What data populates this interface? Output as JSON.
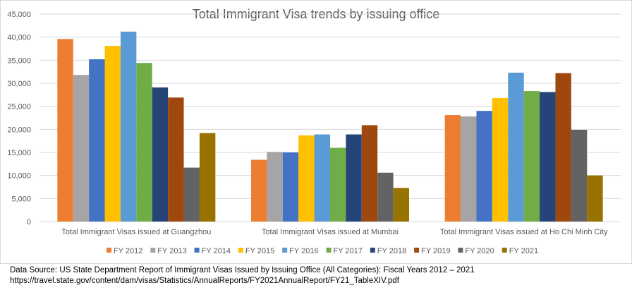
{
  "chart_data": {
    "type": "bar",
    "title": "Total  Immigrant Visa trends by issuing office",
    "xlabel": "",
    "ylabel": "",
    "ylim": [
      0,
      45000
    ],
    "yticks": [
      "0",
      "5,000",
      "10,000",
      "15,000",
      "20,000",
      "25,000",
      "30,000",
      "35,000",
      "40,000",
      "45,000"
    ],
    "grid": true,
    "legend_position": "bottom",
    "categories": [
      "Total Immigrant Visas issued at Guangzhou",
      "Total Immigrant Visas issued at Mumbai",
      "Total Immigrant Visas issued at Ho Chi Minh City"
    ],
    "series": [
      {
        "name": "FY 2012",
        "color": "#ed7d31",
        "values": [
          39600,
          13400,
          23100
        ]
      },
      {
        "name": "FY 2013",
        "color": "#a5a5a5",
        "values": [
          31800,
          15100,
          22800
        ]
      },
      {
        "name": "FY 2014",
        "color": "#4472c4",
        "values": [
          35200,
          15000,
          24000
        ]
      },
      {
        "name": "FY 2015",
        "color": "#ffc000",
        "values": [
          38100,
          18700,
          26800
        ]
      },
      {
        "name": "FY 2016",
        "color": "#5b9bd5",
        "values": [
          41200,
          18900,
          32300
        ]
      },
      {
        "name": "FY 2017",
        "color": "#70ad47",
        "values": [
          34400,
          16000,
          28300
        ]
      },
      {
        "name": "FY 2018",
        "color": "#264478",
        "values": [
          29100,
          18900,
          28100
        ]
      },
      {
        "name": "FY 2019",
        "color": "#9e480e",
        "values": [
          26900,
          20900,
          32200
        ]
      },
      {
        "name": "FY 2020",
        "color": "#636363",
        "values": [
          11700,
          10600,
          19900
        ]
      },
      {
        "name": "FY 2021",
        "color": "#997300",
        "values": [
          19200,
          7300,
          10000
        ]
      }
    ]
  },
  "footer": {
    "line1": "Data Source: US State Department Report of Immigrant Visas Issued by Issuing Office (All Categories): Fiscal Years 2012 – 2021",
    "line2": "https://travel.state.gov/content/dam/visas/Statistics/AnnualReports/FY2021AnnualReport/FY21_TableXIV.pdf"
  }
}
